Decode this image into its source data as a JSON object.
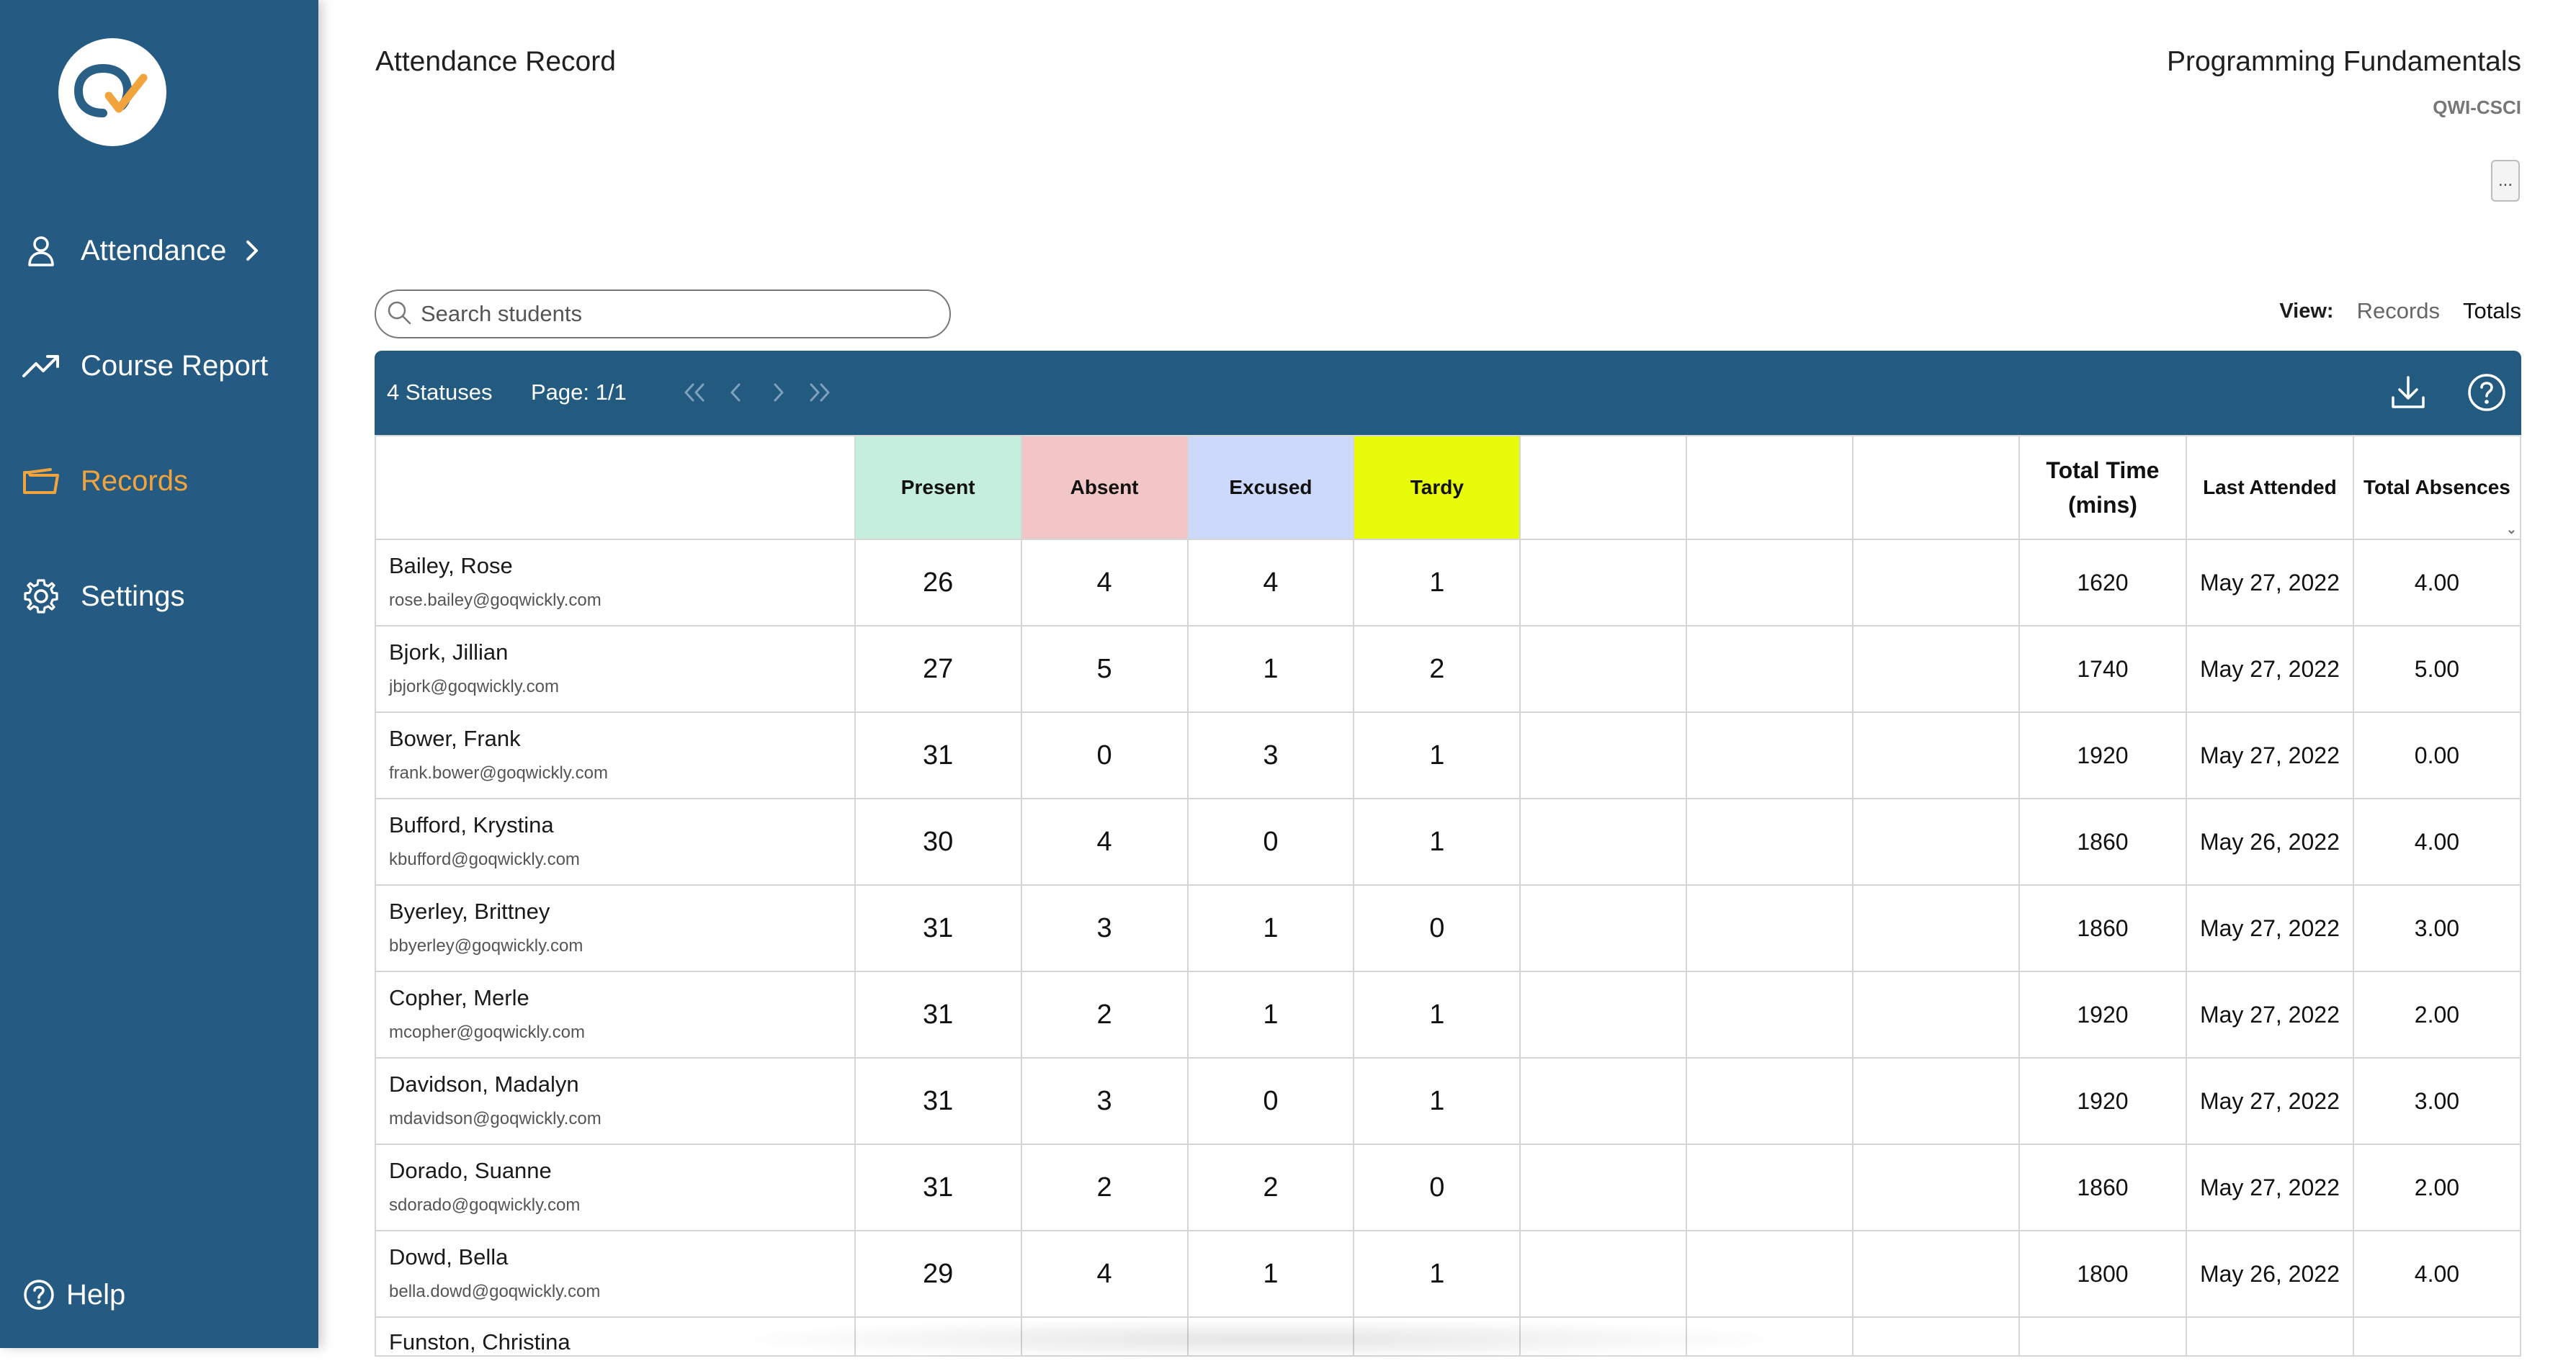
{
  "sidebar": {
    "items": [
      {
        "label": "Attendance",
        "icon": "user-icon"
      },
      {
        "label": "Course Report",
        "icon": "trending-up-icon"
      },
      {
        "label": "Records",
        "icon": "folder-icon"
      },
      {
        "label": "Settings",
        "icon": "gear-icon"
      }
    ],
    "help_label": "Help"
  },
  "header": {
    "title": "Attendance Record",
    "course_name": "Programming Fundamentals",
    "course_code": "QWI-CSCI",
    "more_label": "..."
  },
  "search": {
    "placeholder": "Search students"
  },
  "view": {
    "label": "View:",
    "options": [
      "Records",
      "Totals"
    ],
    "selected": "Totals"
  },
  "toolbar": {
    "statuses": "4 Statuses",
    "page": "Page: 1/1"
  },
  "colors": {
    "sidebar": "#255a82",
    "accent": "#f1a33c",
    "present": "#c6eedc",
    "absent": "#f2c6c6",
    "excused": "#cdd9fb",
    "tardy": "#e8fb0b"
  },
  "table": {
    "columns": {
      "present": "Present",
      "absent": "Absent",
      "excused": "Excused",
      "tardy": "Tardy",
      "total_time": "Total Time (mins)",
      "last_attended": "Last Attended",
      "total_absences": "Total Absences"
    },
    "rows": [
      {
        "name": "Bailey, Rose",
        "email": "rose.bailey@goqwickly.com",
        "present": "26",
        "absent": "4",
        "excused": "4",
        "tardy": "1",
        "total_time": "1620",
        "last_attended": "May 27, 2022",
        "total_absences": "4.00"
      },
      {
        "name": "Bjork, Jillian",
        "email": "jbjork@goqwickly.com",
        "present": "27",
        "absent": "5",
        "excused": "1",
        "tardy": "2",
        "total_time": "1740",
        "last_attended": "May 27, 2022",
        "total_absences": "5.00"
      },
      {
        "name": "Bower, Frank",
        "email": "frank.bower@goqwickly.com",
        "present": "31",
        "absent": "0",
        "excused": "3",
        "tardy": "1",
        "total_time": "1920",
        "last_attended": "May 27, 2022",
        "total_absences": "0.00"
      },
      {
        "name": "Bufford, Krystina",
        "email": "kbufford@goqwickly.com",
        "present": "30",
        "absent": "4",
        "excused": "0",
        "tardy": "1",
        "total_time": "1860",
        "last_attended": "May 26, 2022",
        "total_absences": "4.00"
      },
      {
        "name": "Byerley, Brittney",
        "email": "bbyerley@goqwickly.com",
        "present": "31",
        "absent": "3",
        "excused": "1",
        "tardy": "0",
        "total_time": "1860",
        "last_attended": "May 27, 2022",
        "total_absences": "3.00"
      },
      {
        "name": "Copher, Merle",
        "email": "mcopher@goqwickly.com",
        "present": "31",
        "absent": "2",
        "excused": "1",
        "tardy": "1",
        "total_time": "1920",
        "last_attended": "May 27, 2022",
        "total_absences": "2.00"
      },
      {
        "name": "Davidson, Madalyn",
        "email": "mdavidson@goqwickly.com",
        "present": "31",
        "absent": "3",
        "excused": "0",
        "tardy": "1",
        "total_time": "1920",
        "last_attended": "May 27, 2022",
        "total_absences": "3.00"
      },
      {
        "name": "Dorado, Suanne",
        "email": "sdorado@goqwickly.com",
        "present": "31",
        "absent": "2",
        "excused": "2",
        "tardy": "0",
        "total_time": "1860",
        "last_attended": "May 27, 2022",
        "total_absences": "2.00"
      },
      {
        "name": "Dowd, Bella",
        "email": "bella.dowd@goqwickly.com",
        "present": "29",
        "absent": "4",
        "excused": "1",
        "tardy": "1",
        "total_time": "1800",
        "last_attended": "May 26, 2022",
        "total_absences": "4.00"
      }
    ],
    "partial_row_name": "Funston, Christina"
  }
}
